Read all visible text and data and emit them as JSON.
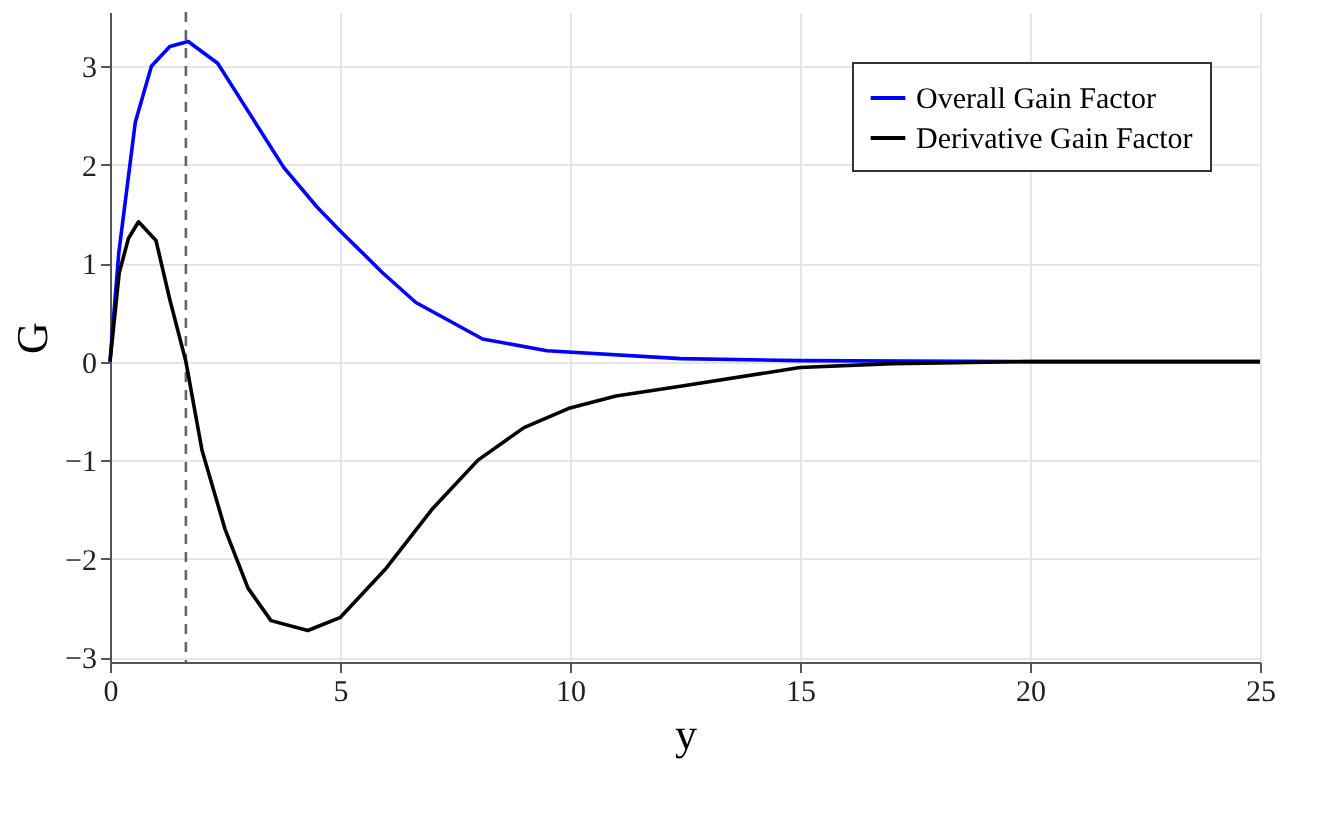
{
  "chart_data": {
    "type": "line",
    "xlabel": "y",
    "ylabel": "G",
    "xlim": [
      0,
      25
    ],
    "ylim": [
      -3.05,
      3.55
    ],
    "xticks": [
      0,
      5,
      10,
      15,
      20,
      25
    ],
    "yticks": [
      -3,
      -2,
      -1,
      0,
      1,
      2,
      3
    ],
    "grid": true,
    "legend": "top right",
    "line_style": "solid",
    "marker": "none",
    "ref_lines": [
      {
        "axis": "x",
        "value": 1.65,
        "label": null,
        "color": "#666666",
        "line_style": "dashed"
      }
    ],
    "series": [
      {
        "name": "Overall Gain Factor",
        "color": "#0000ff",
        "x": [
          0,
          0.19,
          0.55,
          0.9,
          1.3,
          1.7,
          2.34,
          3.06,
          3.78,
          4.5,
          5,
          5.93,
          6.65,
          8.1,
          9.5,
          12.4,
          15,
          20,
          25
        ],
        "values": [
          0,
          1.1,
          2.43,
          3.0,
          3.2,
          3.25,
          3.03,
          2.5,
          1.97,
          1.57,
          1.33,
          0.9,
          0.6,
          0.23,
          0.11,
          0.03,
          0.01,
          0,
          0
        ]
      },
      {
        "name": "Derivative Gain Factor",
        "color": "#000000",
        "x": [
          0,
          0.2,
          0.4,
          0.62,
          1.0,
          1.3,
          1.65,
          2.0,
          2.5,
          3.0,
          3.5,
          4.3,
          5,
          6,
          7,
          8,
          9,
          10,
          11,
          12.4,
          15,
          17,
          20,
          25
        ],
        "values": [
          0,
          0.9,
          1.25,
          1.42,
          1.23,
          0.63,
          0,
          -0.9,
          -1.7,
          -2.3,
          -2.63,
          -2.73,
          -2.6,
          -2.1,
          -1.5,
          -1.0,
          -0.67,
          -0.47,
          -0.35,
          -0.25,
          -0.06,
          -0.02,
          0,
          0
        ]
      }
    ]
  }
}
